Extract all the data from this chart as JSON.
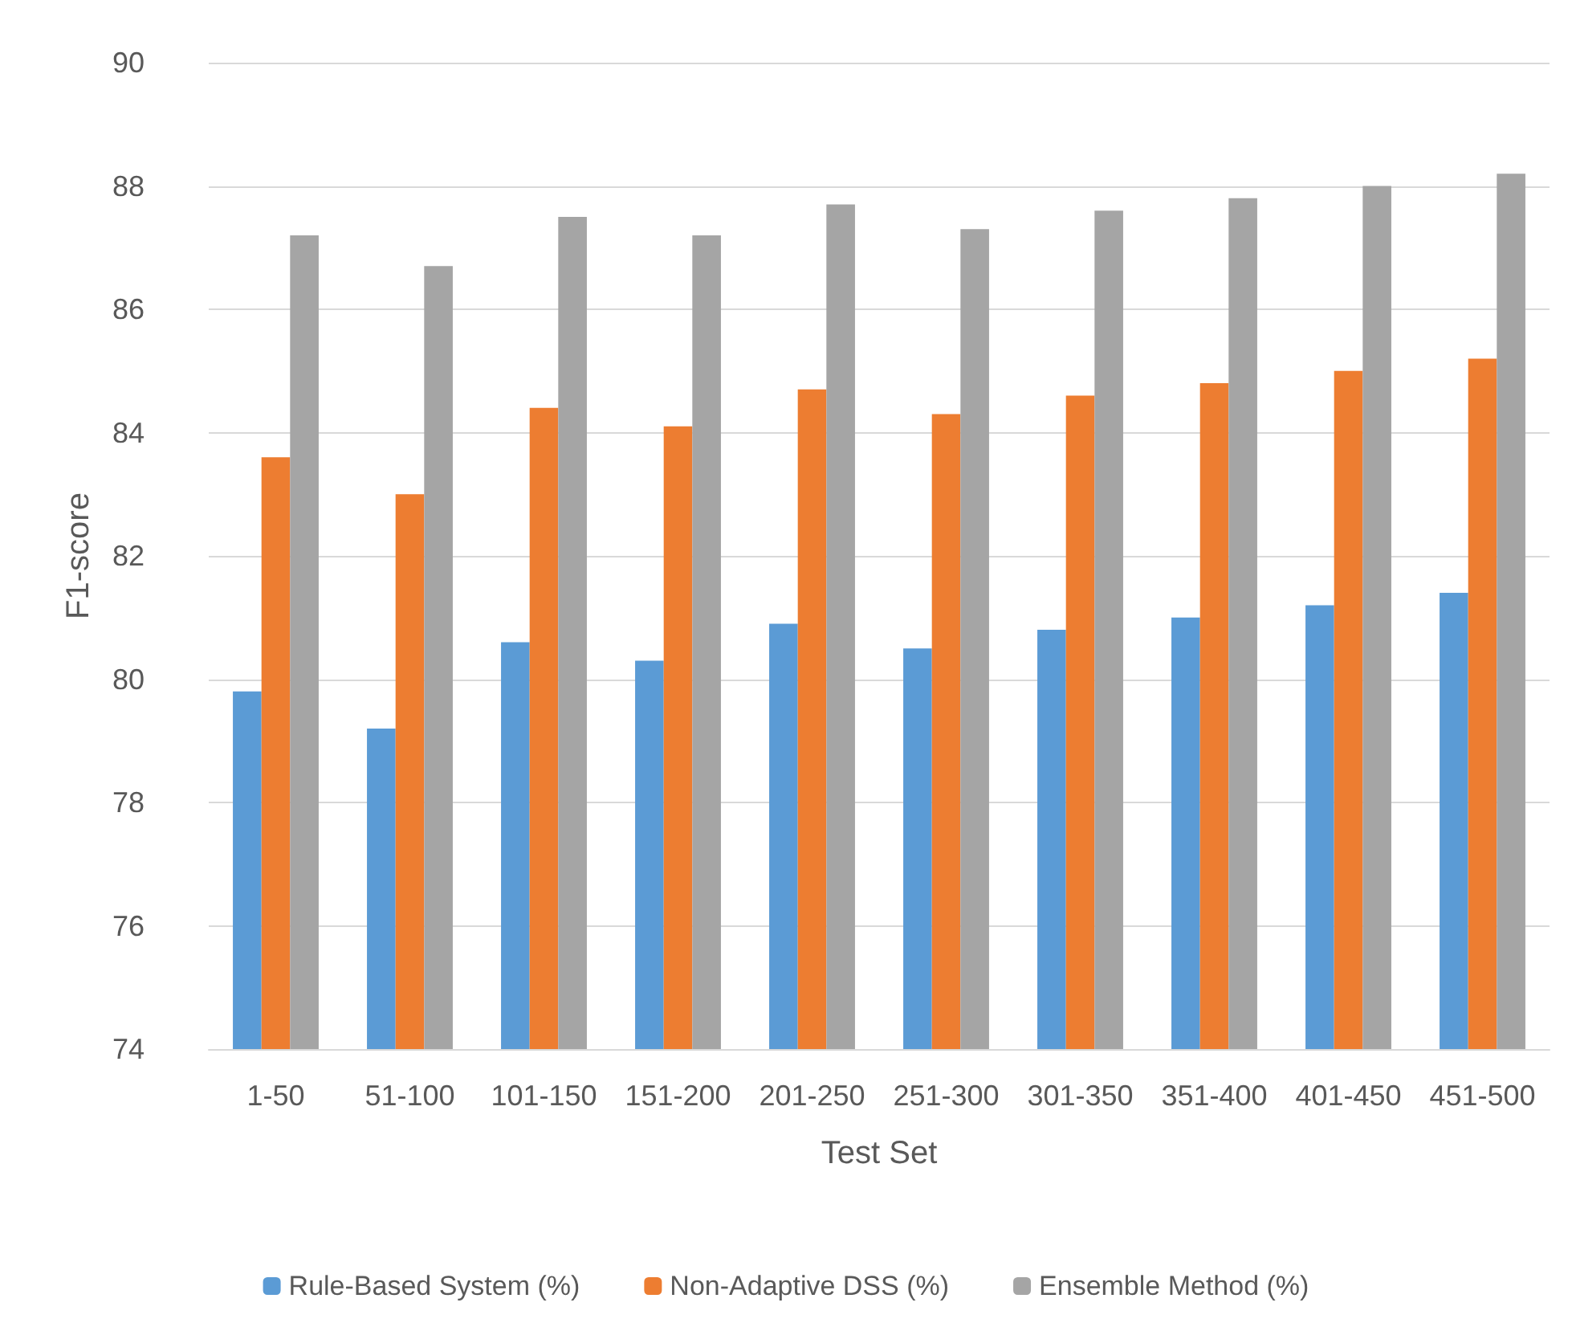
{
  "chart_data": {
    "type": "bar",
    "xlabel": "Test Set",
    "ylabel": "F1-score",
    "categories": [
      "1-50",
      "51-100",
      "101-150",
      "151-200",
      "201-250",
      "251-300",
      "301-350",
      "351-400",
      "401-450",
      "451-500"
    ],
    "series": [
      {
        "name": "Rule-Based System (%)",
        "color": "#5b9bd5",
        "values": [
          79.8,
          79.2,
          80.6,
          80.3,
          80.9,
          80.5,
          80.8,
          81.0,
          81.2,
          81.4
        ]
      },
      {
        "name": "Non-Adaptive DSS (%)",
        "color": "#ed7d31",
        "values": [
          83.6,
          83.0,
          84.4,
          84.1,
          84.7,
          84.3,
          84.6,
          84.8,
          85.0,
          85.2
        ]
      },
      {
        "name": "Ensemble Method (%)",
        "color": "#a5a5a5",
        "values": [
          87.2,
          86.7,
          87.5,
          87.2,
          87.7,
          87.3,
          87.6,
          87.8,
          88.0,
          88.2
        ]
      }
    ],
    "ylim": [
      74,
      90
    ],
    "yticks": [
      74,
      76,
      78,
      80,
      82,
      84,
      86,
      88,
      90
    ],
    "grid": "y",
    "legend": "bottom"
  }
}
